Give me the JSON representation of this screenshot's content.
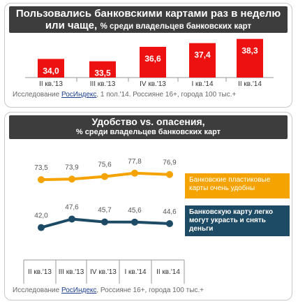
{
  "chart_data": [
    {
      "type": "bar",
      "title_main": "Пользовались банковскими картами раз в неделю",
      "title_line2_main": "или чаще,",
      "title_line2_sub": "% среди владельцев банковских карт",
      "categories": [
        "II кв.'13",
        "III кв.'13",
        "IV кв.'13",
        "I кв.'14",
        "II кв.'14"
      ],
      "values": [
        34.0,
        33.5,
        36.6,
        37.4,
        38.3
      ],
      "value_labels": [
        "34,0",
        "33,5",
        "36,6",
        "37,4",
        "38,3"
      ],
      "ylim": [
        30,
        39
      ],
      "colors": {
        "bar": "#ee1111",
        "label": "#ffffff"
      }
    },
    {
      "type": "line",
      "title_main": "Удобство vs. опасения,",
      "title_sub": "% среди владельцев банковских карт",
      "categories": [
        "II кв.'13",
        "III кв.'13",
        "IV кв.'13",
        "I кв.'14",
        "II кв.'14"
      ],
      "series": [
        {
          "name": "Банковские пластиковые карты очень удобны",
          "values": [
            73.5,
            73.9,
            75.6,
            77.8,
            76.9
          ],
          "value_labels": [
            "73,5",
            "73,9",
            "75,6",
            "77,8",
            "76,9"
          ],
          "color": "#f5a300"
        },
        {
          "name": "Банковскую карту легко могут украсть и снять деньги",
          "values": [
            42.0,
            47.6,
            45.7,
            45.6,
            44.6
          ],
          "value_labels": [
            "42,0",
            "47,6",
            "45,7",
            "45,6",
            "44,6"
          ],
          "color": "#1d4a64"
        }
      ]
    }
  ],
  "source_1": {
    "prefix": "Исследование ",
    "link": "РосИндекс",
    "suffix": ", 1 пол.'14.  Россияне 16+, города 100 тыс.+"
  },
  "source_2": {
    "prefix": "Исследование ",
    "link": "РосИндекс",
    "suffix": ",  Россияне 16+, города 100 тыс.+"
  }
}
